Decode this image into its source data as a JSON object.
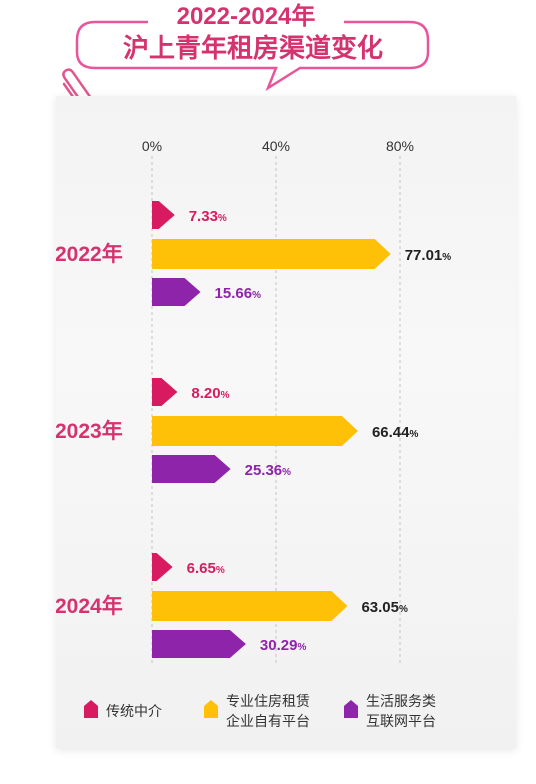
{
  "title": {
    "line1": "2022-2024年",
    "line2": "沪上青年租房渠道变化"
  },
  "chart_data": {
    "type": "bar",
    "orientation": "horizontal",
    "categories": [
      "2022年",
      "2023年",
      "2024年"
    ],
    "series": [
      {
        "name": "传统中介",
        "values": [
          7.33,
          8.2,
          6.65
        ],
        "color": "#d81b60"
      },
      {
        "name": "专业住房租赁企业自有平台",
        "values": [
          77.01,
          66.44,
          63.05
        ],
        "color": "#ffc107"
      },
      {
        "name": "生活服务类互联网平台",
        "values": [
          15.66,
          25.36,
          30.29
        ],
        "color": "#8e24aa"
      }
    ],
    "value_labels": [
      [
        "7.33",
        "77.01",
        "15.66"
      ],
      [
        "8.20",
        "66.44",
        "25.36"
      ],
      [
        "6.65",
        "63.05",
        "30.29"
      ]
    ],
    "unit": "%",
    "xaxis": {
      "ticks": [
        0,
        40,
        80
      ],
      "tick_labels": [
        "0%",
        "40%",
        "80%"
      ],
      "range": [
        0,
        100
      ]
    },
    "grid": "vertical dashed",
    "legend": {
      "placement": "bottom",
      "items": [
        {
          "lines": [
            "传统中介"
          ],
          "color": "#d81b60"
        },
        {
          "lines": [
            "专业住房租赁",
            "企业自有平台"
          ],
          "color": "#ffc107"
        },
        {
          "lines": [
            "生活服务类",
            "互联网平台"
          ],
          "color": "#8e24aa"
        }
      ]
    }
  },
  "colors": {
    "accent_pink": "#d81b60",
    "bubble_border": "#e8559a",
    "category_label": "#d5336f",
    "value_text": "#222222"
  },
  "icons": [
    "paperclip-icon"
  ]
}
